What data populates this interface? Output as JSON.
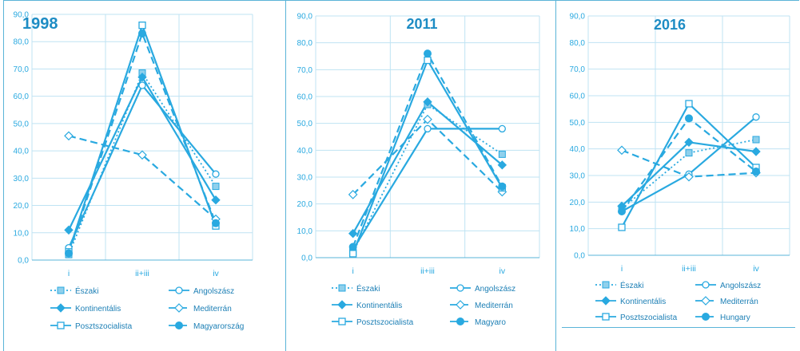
{
  "colors": {
    "series": "#29a9e0",
    "grid": "#bfe3f3",
    "frame": "#5ab4d8",
    "text": "#29a9e0",
    "title": "#1d8cc4"
  },
  "chart_data": [
    {
      "type": "line",
      "title": "1998",
      "categories": [
        "i",
        "ii+iii",
        "iv"
      ],
      "ylim": [
        0,
        90
      ],
      "yticks": [
        "0,0",
        "10,0",
        "20,0",
        "30,0",
        "40,0",
        "50,0",
        "60,0",
        "70,0",
        "80,0",
        "90,0"
      ],
      "series": [
        {
          "name": "Északi",
          "style": "dotted",
          "marker": "square-filled",
          "values": [
            2.0,
            68.5,
            27.0
          ]
        },
        {
          "name": "Angolszász",
          "style": "solid",
          "marker": "circle-open",
          "values": [
            4.5,
            64.0,
            31.5
          ]
        },
        {
          "name": "Kontinentális",
          "style": "solid",
          "marker": "diamond-filled",
          "values": [
            11.0,
            67.0,
            22.0
          ]
        },
        {
          "name": "Mediterrán",
          "style": "dashed",
          "marker": "diamond-open",
          "values": [
            45.5,
            38.5,
            15.0
          ]
        },
        {
          "name": "Posztszocialista",
          "style": "solid",
          "marker": "square-open",
          "values": [
            3.0,
            86.0,
            12.5
          ]
        },
        {
          "name": "Magyarország",
          "style": "dashed",
          "marker": "circle-filled",
          "values": [
            2.5,
            83.0,
            13.5
          ]
        }
      ]
    },
    {
      "type": "line",
      "title": "2011",
      "categories": [
        "i",
        "ii+iii",
        "iv"
      ],
      "ylim": [
        0,
        90
      ],
      "yticks": [
        "0,0",
        "10,0",
        "20,0",
        "30,0",
        "40,0",
        "50,0",
        "60,0",
        "70,0",
        "80,0",
        "90,0"
      ],
      "series": [
        {
          "name": "Északi",
          "style": "dotted",
          "marker": "square-filled",
          "values": [
            2.0,
            57.0,
            38.5
          ]
        },
        {
          "name": "Angolszász",
          "style": "solid",
          "marker": "circle-open",
          "values": [
            3.0,
            48.0,
            48.0
          ]
        },
        {
          "name": "Kontinentális",
          "style": "solid",
          "marker": "diamond-filled",
          "values": [
            9.0,
            58.0,
            34.5
          ]
        },
        {
          "name": "Mediterrán",
          "style": "dashed",
          "marker": "diamond-open",
          "values": [
            23.5,
            51.5,
            24.5
          ]
        },
        {
          "name": "Posztszocialista",
          "style": "solid",
          "marker": "square-open",
          "values": [
            1.5,
            73.5,
            26.0
          ]
        },
        {
          "name": "Magyaro",
          "style": "dashed",
          "marker": "circle-filled",
          "values": [
            4.0,
            76.0,
            26.5
          ]
        }
      ]
    },
    {
      "type": "line",
      "title": "2016",
      "categories": [
        "i",
        "ii+iii",
        "iv"
      ],
      "ylim": [
        0,
        90
      ],
      "yticks": [
        "0,0",
        "10,0",
        "20,0",
        "30,0",
        "40,0",
        "50,0",
        "60,0",
        "70,0",
        "80,0",
        "90,0"
      ],
      "series": [
        {
          "name": "Északi",
          "style": "dotted",
          "marker": "square-filled",
          "values": [
            17.5,
            38.5,
            43.5
          ]
        },
        {
          "name": "Angolszász",
          "style": "solid",
          "marker": "circle-open",
          "values": [
            16.5,
            30.5,
            52.0
          ]
        },
        {
          "name": "Kontinentális",
          "style": "solid",
          "marker": "diamond-filled",
          "values": [
            18.5,
            42.5,
            39.0
          ]
        },
        {
          "name": "Mediterrán",
          "style": "dashed",
          "marker": "diamond-open",
          "values": [
            39.5,
            29.5,
            31.0
          ]
        },
        {
          "name": "Posztszocialista",
          "style": "solid",
          "marker": "square-open",
          "values": [
            10.5,
            57.0,
            33.0
          ]
        },
        {
          "name": "Hungary",
          "style": "dashed",
          "marker": "circle-filled",
          "values": [
            16.5,
            51.5,
            31.5
          ]
        }
      ]
    }
  ]
}
